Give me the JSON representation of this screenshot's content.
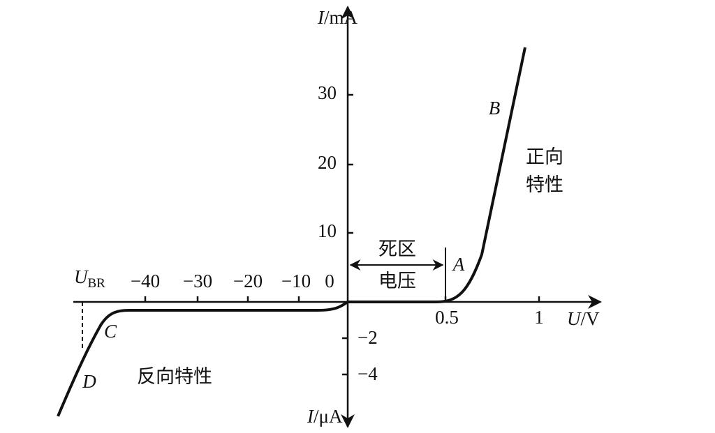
{
  "axes": {
    "y_top_label": {
      "symbol": "I",
      "unit": "/mA"
    },
    "y_bottom_label": {
      "symbol": "I",
      "unit": "/μA"
    },
    "x_label": {
      "symbol": "U",
      "unit": "/V"
    },
    "breakdown_label": {
      "symbol": "U",
      "subscript": "BR"
    },
    "y_ticks_positive": [
      "30",
      "20",
      "10"
    ],
    "y_ticks_negative": [
      "−2",
      "−4"
    ],
    "x_ticks_negative": [
      "−40",
      "−30",
      "−20",
      "−10",
      "0"
    ],
    "x_ticks_positive": [
      "0.5",
      "1"
    ]
  },
  "annotations": {
    "dead_zone": [
      "死区",
      "电压"
    ],
    "forward": [
      "正向",
      "特性"
    ],
    "reverse": "反向特性",
    "points": [
      "A",
      "B",
      "C",
      "D"
    ]
  }
}
